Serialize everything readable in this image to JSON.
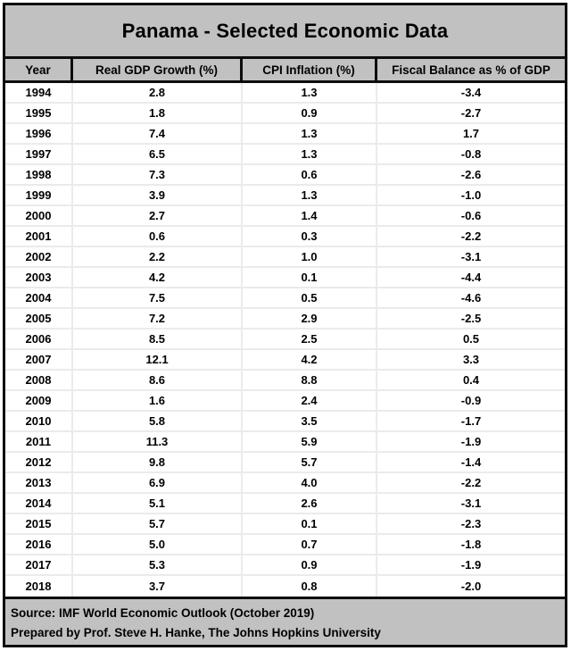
{
  "title": "Panama - Selected Economic Data",
  "chart_data": {
    "type": "table",
    "title": "Panama - Selected Economic Data",
    "columns": [
      "Year",
      "Real GDP Growth (%)",
      "CPI Inflation (%)",
      "Fiscal Balance as % of GDP"
    ],
    "rows": [
      [
        "1994",
        "2.8",
        "1.3",
        "-3.4"
      ],
      [
        "1995",
        "1.8",
        "0.9",
        "-2.7"
      ],
      [
        "1996",
        "7.4",
        "1.3",
        "1.7"
      ],
      [
        "1997",
        "6.5",
        "1.3",
        "-0.8"
      ],
      [
        "1998",
        "7.3",
        "0.6",
        "-2.6"
      ],
      [
        "1999",
        "3.9",
        "1.3",
        "-1.0"
      ],
      [
        "2000",
        "2.7",
        "1.4",
        "-0.6"
      ],
      [
        "2001",
        "0.6",
        "0.3",
        "-2.2"
      ],
      [
        "2002",
        "2.2",
        "1.0",
        "-3.1"
      ],
      [
        "2003",
        "4.2",
        "0.1",
        "-4.4"
      ],
      [
        "2004",
        "7.5",
        "0.5",
        "-4.6"
      ],
      [
        "2005",
        "7.2",
        "2.9",
        "-2.5"
      ],
      [
        "2006",
        "8.5",
        "2.5",
        "0.5"
      ],
      [
        "2007",
        "12.1",
        "4.2",
        "3.3"
      ],
      [
        "2008",
        "8.6",
        "8.8",
        "0.4"
      ],
      [
        "2009",
        "1.6",
        "2.4",
        "-0.9"
      ],
      [
        "2010",
        "5.8",
        "3.5",
        "-1.7"
      ],
      [
        "2011",
        "11.3",
        "5.9",
        "-1.9"
      ],
      [
        "2012",
        "9.8",
        "5.7",
        "-1.4"
      ],
      [
        "2013",
        "6.9",
        "4.0",
        "-2.2"
      ],
      [
        "2014",
        "5.1",
        "2.6",
        "-3.1"
      ],
      [
        "2015",
        "5.7",
        "0.1",
        "-2.3"
      ],
      [
        "2016",
        "5.0",
        "0.7",
        "-1.8"
      ],
      [
        "2017",
        "5.3",
        "0.9",
        "-1.9"
      ],
      [
        "2018",
        "3.7",
        "0.8",
        "-2.0"
      ]
    ]
  },
  "footer": {
    "source_line": "Source: IMF World Economic Outlook (October 2019)",
    "prepared_line": "Prepared by Prof. Steve H. Hanke, The Johns Hopkins University"
  },
  "colors": {
    "band_gray": "#c1c1c1",
    "border_black": "#0d0d0d",
    "gridline_gray": "#ebebeb"
  }
}
